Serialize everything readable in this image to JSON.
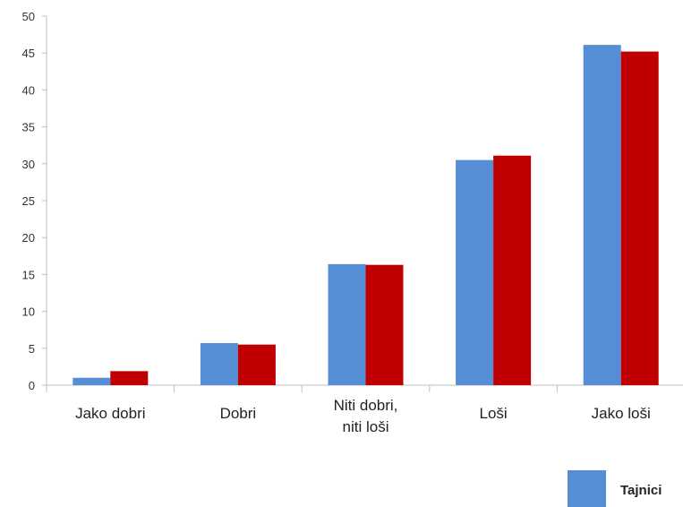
{
  "chart_data": {
    "type": "bar",
    "title": "",
    "xlabel": "",
    "ylabel": "",
    "ylim": [
      0,
      50
    ],
    "yticks": [
      0,
      5,
      10,
      15,
      20,
      25,
      30,
      35,
      40,
      45,
      50
    ],
    "categories": [
      [
        "Jako dobri"
      ],
      [
        "Dobri"
      ],
      [
        "Niti dobri,",
        "niti loši"
      ],
      [
        "Loši"
      ],
      [
        "Jako loši"
      ]
    ],
    "series": [
      {
        "name": "Tajnici",
        "color": "#558ED5",
        "values": [
          1,
          5.7,
          16.4,
          30.5,
          46.1
        ]
      },
      {
        "color": "#C00000",
        "values": [
          1.9,
          5.5,
          16.3,
          31.1,
          45.2
        ]
      }
    ],
    "grid": false,
    "legend_position": "bottom-right"
  }
}
